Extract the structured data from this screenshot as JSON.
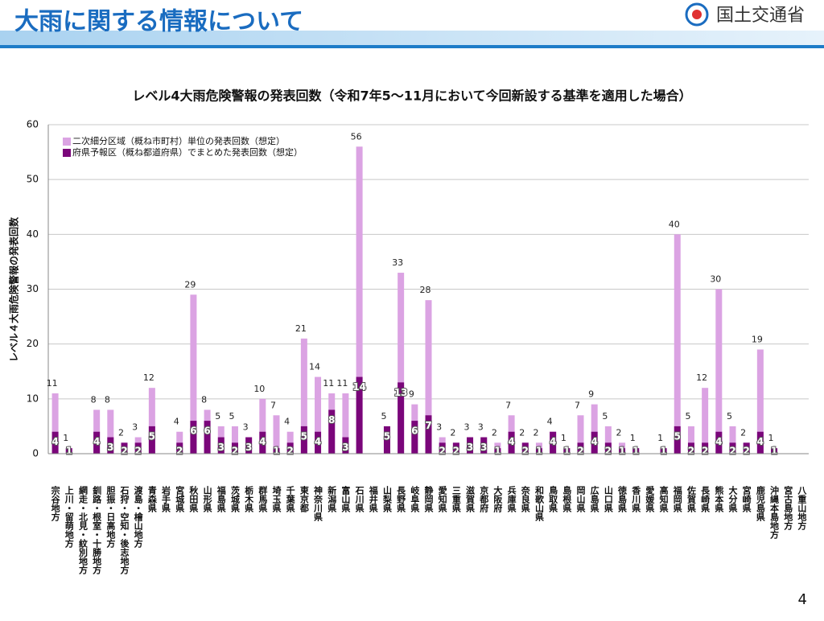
{
  "header": {
    "title": "大雨に関する情報について",
    "logo_text": "国土交通省"
  },
  "page_number": "4",
  "chart_data": {
    "type": "bar",
    "title": "レベル4大雨危険警報の発表回数（令和7年5～11月において今回新設する基準を適用した場合）",
    "ylabel": "レベル４大雨危険警報の発表回数",
    "categories": [
      "宗谷地方",
      "上川・留萌地方",
      "網走・北見・紋別地方",
      "釧路・根室・十勝地方",
      "胆振・日高地方",
      "石狩・空知・後志地方",
      "渡島・檜山地方",
      "青森県",
      "岩手県",
      "宮城県",
      "秋田県",
      "山形県",
      "福島県",
      "茨城県",
      "栃木県",
      "群馬県",
      "埼玉県",
      "千葉県",
      "東京都",
      "神奈川県",
      "新潟県",
      "富山県",
      "石川県",
      "福井県",
      "山梨県",
      "長野県",
      "岐阜県",
      "静岡県",
      "愛知県",
      "三重県",
      "滋賀県",
      "京都府",
      "大阪府",
      "兵庫県",
      "奈良県",
      "和歌山県",
      "鳥取県",
      "島根県",
      "岡山県",
      "広島県",
      "山口県",
      "徳島県",
      "香川県",
      "愛媛県",
      "高知県",
      "福岡県",
      "佐賀県",
      "長崎県",
      "熊本県",
      "大分県",
      "宮崎県",
      "鹿児島県",
      "沖縄本島地方",
      "宮古島地方",
      "八重山地方"
    ],
    "series": [
      {
        "name": "二次細分区域（概ね市町村）単位の発表回数（想定）",
        "color": "#dba3e3",
        "values": [
          11,
          1,
          null,
          8,
          8,
          2,
          3,
          12,
          null,
          4,
          29,
          8,
          5,
          5,
          3,
          10,
          7,
          4,
          21,
          14,
          11,
          11,
          56,
          null,
          5,
          33,
          9,
          28,
          3,
          2,
          3,
          3,
          2,
          7,
          2,
          2,
          4,
          1,
          7,
          9,
          5,
          2,
          1,
          null,
          1,
          40,
          5,
          12,
          30,
          5,
          2,
          19,
          1,
          null,
          null
        ]
      },
      {
        "name": "府県予報区（概ね都道府県）でまとめた発表回数（想定）",
        "color": "#7a067a",
        "values": [
          4,
          1,
          null,
          4,
          3,
          2,
          2,
          5,
          null,
          2,
          6,
          6,
          3,
          2,
          3,
          4,
          1,
          2,
          5,
          4,
          8,
          3,
          14,
          null,
          5,
          13,
          6,
          7,
          2,
          2,
          3,
          3,
          1,
          4,
          2,
          1,
          4,
          1,
          2,
          4,
          2,
          1,
          1,
          null,
          1,
          5,
          2,
          2,
          4,
          2,
          2,
          4,
          1,
          null,
          null
        ]
      }
    ],
    "ylim": [
      0,
      60
    ],
    "yticks": [
      0,
      10,
      20,
      30,
      40,
      50,
      60
    ],
    "grid": true,
    "legend": "upper left"
  }
}
